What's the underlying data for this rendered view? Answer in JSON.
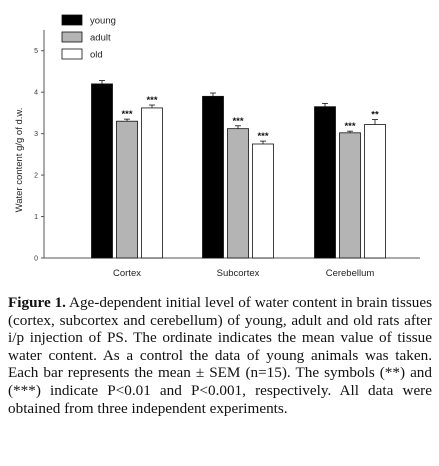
{
  "chart_data": {
    "type": "bar",
    "categories": [
      "Cortex",
      "Subcortex",
      "Cerebellum"
    ],
    "series": [
      {
        "name": "young",
        "color": "#000000",
        "values": [
          4.2,
          3.9,
          3.65
        ],
        "errors": [
          0.08,
          0.08,
          0.08
        ],
        "significance": [
          "",
          "",
          ""
        ]
      },
      {
        "name": "adult",
        "color": "#b4b4b4",
        "values": [
          3.3,
          3.12,
          3.02
        ],
        "errors": [
          0.05,
          0.07,
          0.04
        ],
        "significance": [
          "***",
          "***",
          "***"
        ]
      },
      {
        "name": "old",
        "color": "#ffffff",
        "values": [
          3.62,
          2.75,
          3.22
        ],
        "errors": [
          0.07,
          0.07,
          0.12
        ],
        "significance": [
          "***",
          "***",
          "**"
        ]
      }
    ],
    "ylabel": "Water content g/g of d.w.",
    "xlabel": "",
    "ylim": [
      0,
      5.5
    ],
    "yticks": [
      "0",
      "1",
      "2",
      "3",
      "4",
      "5"
    ],
    "grid": false,
    "legend_position": "top-left"
  },
  "caption": {
    "label": "Figure 1.",
    "text": " Age-dependent initial level of water content in brain tissues (cortex, subcortex and cerebellum) of young, adult and old rats after i/p injection of PS. The ordinate indicates the mean value of tissue water content. As a control the data of young animals was taken. Each bar represents the mean ± SEM (n=15). The symbols (**) and (***) indicate P<0.01 and P<0.001, respectively. All data were obtained from three independent experiments."
  }
}
